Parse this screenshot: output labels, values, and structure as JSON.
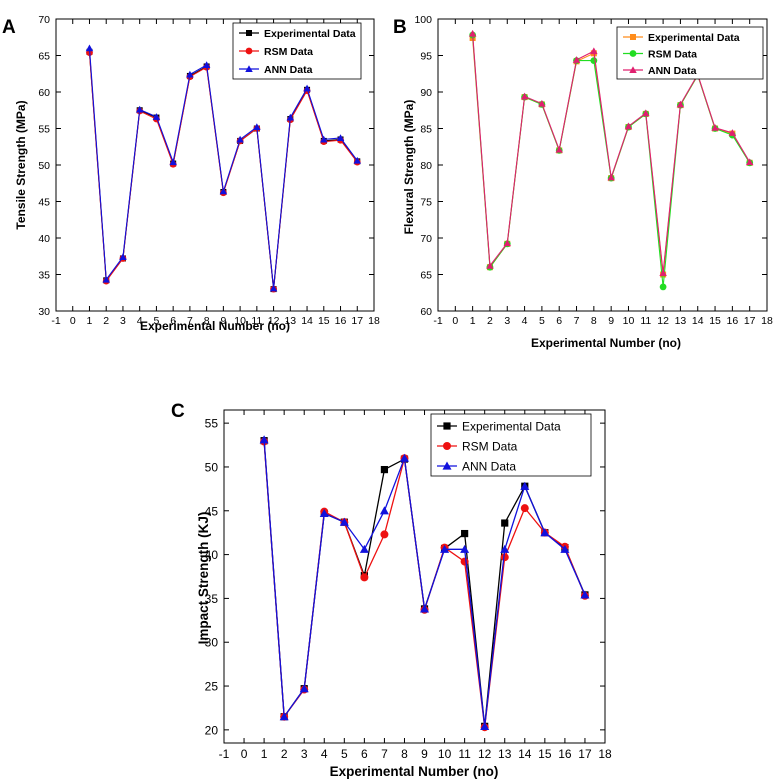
{
  "chart_data": [
    {
      "panel": "A",
      "type": "line",
      "xlabel": "Experimental Number (no)",
      "ylabel": "Tensile Strength (MPa)",
      "xlim": [
        -1,
        18
      ],
      "ylim": [
        30,
        70
      ],
      "x_ticks": [
        -1,
        0,
        1,
        2,
        3,
        4,
        5,
        6,
        7,
        8,
        9,
        10,
        11,
        12,
        13,
        14,
        15,
        16,
        17,
        18
      ],
      "y_ticks": [
        30,
        35,
        40,
        45,
        50,
        55,
        60,
        65,
        70
      ],
      "legend_position": "top-right",
      "x": [
        1,
        2,
        3,
        4,
        5,
        6,
        7,
        8,
        9,
        10,
        11,
        12,
        13,
        14,
        15,
        16,
        17
      ],
      "series": [
        {
          "name": "Experimental Data",
          "color": "#000000",
          "marker": "square",
          "values": [
            65.5,
            34.2,
            37.2,
            57.5,
            56.5,
            50.2,
            62.2,
            63.5,
            46.3,
            53.3,
            55.0,
            33.0,
            56.3,
            60.3,
            53.3,
            53.5,
            50.5
          ]
        },
        {
          "name": "RSM Data",
          "color": "#ee1111",
          "marker": "circle",
          "values": [
            65.4,
            34.1,
            37.2,
            57.4,
            56.3,
            50.1,
            62.1,
            63.4,
            46.2,
            53.3,
            55.0,
            33.0,
            56.2,
            60.2,
            53.2,
            53.4,
            50.4
          ]
        },
        {
          "name": "ANN Data",
          "color": "#1111dd",
          "marker": "triangle",
          "values": [
            66.0,
            34.3,
            37.4,
            57.6,
            56.6,
            50.4,
            62.4,
            63.7,
            46.4,
            53.5,
            55.2,
            33.1,
            56.5,
            60.5,
            53.5,
            53.7,
            50.6
          ]
        }
      ]
    },
    {
      "panel": "B",
      "type": "line",
      "xlabel": "Experimental Number (no)",
      "ylabel": "Flexural Strength (MPa)",
      "xlim": [
        -1,
        18
      ],
      "ylim": [
        60,
        100
      ],
      "x_ticks": [
        -1,
        0,
        1,
        2,
        3,
        4,
        5,
        6,
        7,
        8,
        9,
        10,
        11,
        12,
        13,
        14,
        15,
        16,
        17,
        18
      ],
      "y_ticks": [
        60,
        65,
        70,
        75,
        80,
        85,
        90,
        95,
        100
      ],
      "legend_position": "top-right",
      "x": [
        1,
        2,
        3,
        4,
        5,
        6,
        7,
        8,
        9,
        10,
        11,
        12,
        13,
        14,
        15,
        16,
        17
      ],
      "series": [
        {
          "name": "Experimental Data",
          "color": "#ff8c1a",
          "marker": "square",
          "values": [
            97.4,
            66.0,
            69.2,
            89.3,
            88.3,
            82.0,
            94.2,
            95.3,
            78.2,
            85.2,
            87.0,
            65.0,
            88.2,
            92.3,
            85.0,
            84.3,
            80.3
          ]
        },
        {
          "name": "RSM Data",
          "color": "#22dd22",
          "marker": "circle",
          "values": [
            97.8,
            66.0,
            69.2,
            89.3,
            88.3,
            82.0,
            94.3,
            94.3,
            78.2,
            85.2,
            87.0,
            63.3,
            88.2,
            92.3,
            85.0,
            84.1,
            80.3
          ]
        },
        {
          "name": "ANN Data",
          "color": "#e0206f",
          "marker": "triangle",
          "values": [
            98.0,
            66.2,
            69.3,
            89.4,
            88.4,
            82.1,
            94.4,
            95.6,
            78.3,
            85.3,
            87.1,
            65.2,
            88.3,
            92.4,
            85.1,
            84.4,
            80.4
          ]
        }
      ]
    },
    {
      "panel": "C",
      "type": "line",
      "xlabel": "Experimental Number (no)",
      "ylabel": "Impact Strength (KJ)",
      "xlim": [
        -1,
        18
      ],
      "ylim": [
        18.5,
        56.5
      ],
      "x_ticks": [
        -1,
        0,
        1,
        2,
        3,
        4,
        5,
        6,
        7,
        8,
        9,
        10,
        11,
        12,
        13,
        14,
        15,
        16,
        17,
        18
      ],
      "y_ticks": [
        20,
        25,
        30,
        35,
        40,
        45,
        50,
        55
      ],
      "legend_position": "top-right",
      "x": [
        1,
        2,
        3,
        4,
        5,
        6,
        7,
        8,
        9,
        10,
        11,
        12,
        13,
        14,
        15,
        16,
        17
      ],
      "series": [
        {
          "name": "Experimental Data",
          "color": "#000000",
          "marker": "square",
          "values": [
            53.0,
            21.5,
            24.7,
            44.7,
            43.7,
            37.6,
            49.7,
            50.9,
            33.8,
            40.7,
            42.4,
            20.4,
            43.6,
            47.8,
            42.5,
            40.8,
            35.4
          ]
        },
        {
          "name": "RSM Data",
          "color": "#ee1111",
          "marker": "circle",
          "values": [
            52.9,
            21.5,
            24.6,
            44.9,
            43.7,
            37.4,
            42.3,
            51.0,
            33.7,
            40.8,
            39.2,
            20.3,
            39.7,
            45.3,
            42.5,
            40.9,
            35.3
          ]
        },
        {
          "name": "ANN Data",
          "color": "#1111dd",
          "marker": "triangle",
          "values": [
            53.1,
            21.5,
            24.7,
            44.7,
            43.7,
            40.6,
            45.0,
            51.0,
            33.8,
            40.6,
            40.6,
            20.4,
            40.6,
            47.8,
            42.5,
            40.6,
            35.4
          ]
        }
      ]
    }
  ]
}
